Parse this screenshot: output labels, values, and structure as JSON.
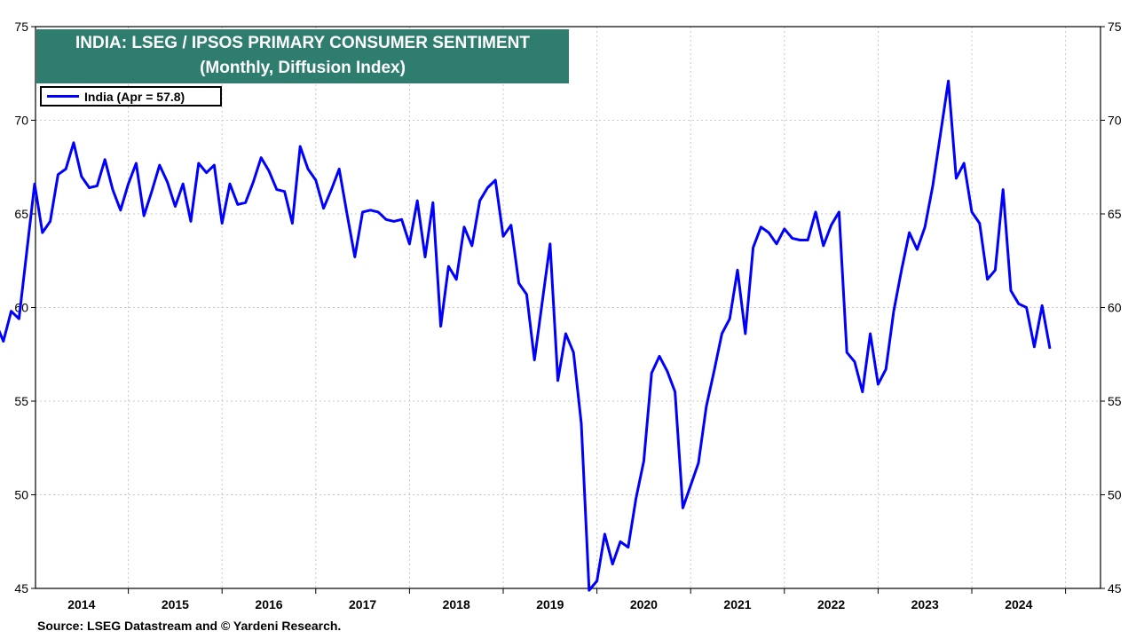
{
  "chart_data": {
    "type": "line",
    "title": "INDIA: LSEG / IPSOS PRIMARY CONSUMER SENTIMENT",
    "subtitle": "(Monthly, Diffusion Index)",
    "legend": {
      "label": "India (Apr = 57.8)",
      "placement": "top-left",
      "color": "#0000ff"
    },
    "ylim": [
      45,
      75
    ],
    "y_ticks": [
      "45",
      "50",
      "55",
      "60",
      "65",
      "70",
      "75"
    ],
    "x_ticks": [
      "2014",
      "2015",
      "2016",
      "2017",
      "2018",
      "2019",
      "2020",
      "2021",
      "2022",
      "2023",
      "2024"
    ],
    "grid": true,
    "axes": "left and right",
    "series": [
      {
        "name": "India (Apr = 57.8)",
        "color": "#0000ff",
        "start": "2013-08",
        "frequency": "monthly",
        "values": [
          59.2,
          58.2,
          59.8,
          59.4,
          63.0,
          66.6,
          64.0,
          64.6,
          67.1,
          67.4,
          68.8,
          67.0,
          66.4,
          66.5,
          67.9,
          66.3,
          65.2,
          66.6,
          67.7,
          64.9,
          66.2,
          67.6,
          66.7,
          65.4,
          66.6,
          64.6,
          67.7,
          67.2,
          67.6,
          64.5,
          66.6,
          65.5,
          65.6,
          66.7,
          68.0,
          67.3,
          66.3,
          66.2,
          64.5,
          68.6,
          67.4,
          66.8,
          65.3,
          66.3,
          67.4,
          65.0,
          62.7,
          65.1,
          65.2,
          65.1,
          64.7,
          64.6,
          64.7,
          63.4,
          65.7,
          62.7,
          65.6,
          59.0,
          62.2,
          61.5,
          64.3,
          63.3,
          65.7,
          66.4,
          66.8,
          63.8,
          64.4,
          61.3,
          60.7,
          57.2,
          60.3,
          63.4,
          56.1,
          58.6,
          57.6,
          53.8,
          44.9,
          45.4,
          47.9,
          46.3,
          47.5,
          47.2,
          49.8,
          51.8,
          56.5,
          57.4,
          56.6,
          55.5,
          49.3,
          50.5,
          51.7,
          54.7,
          56.6,
          58.6,
          59.4,
          62.0,
          58.6,
          63.2,
          64.3,
          64.0,
          63.4,
          64.2,
          63.7,
          63.6,
          63.6,
          65.1,
          63.3,
          64.4,
          65.1,
          57.6,
          57.1,
          55.5,
          58.6,
          55.9,
          56.7,
          59.8,
          62.0,
          64.0,
          63.1,
          64.3,
          66.5,
          69.3,
          72.1,
          66.9,
          67.7,
          65.1,
          64.5,
          61.5,
          62.0,
          66.3,
          60.9,
          60.2,
          60.0,
          57.9,
          60.1,
          57.8
        ]
      }
    ]
  },
  "footer": {
    "source": "Source: LSEG Datastream and © Yardeni Research."
  }
}
